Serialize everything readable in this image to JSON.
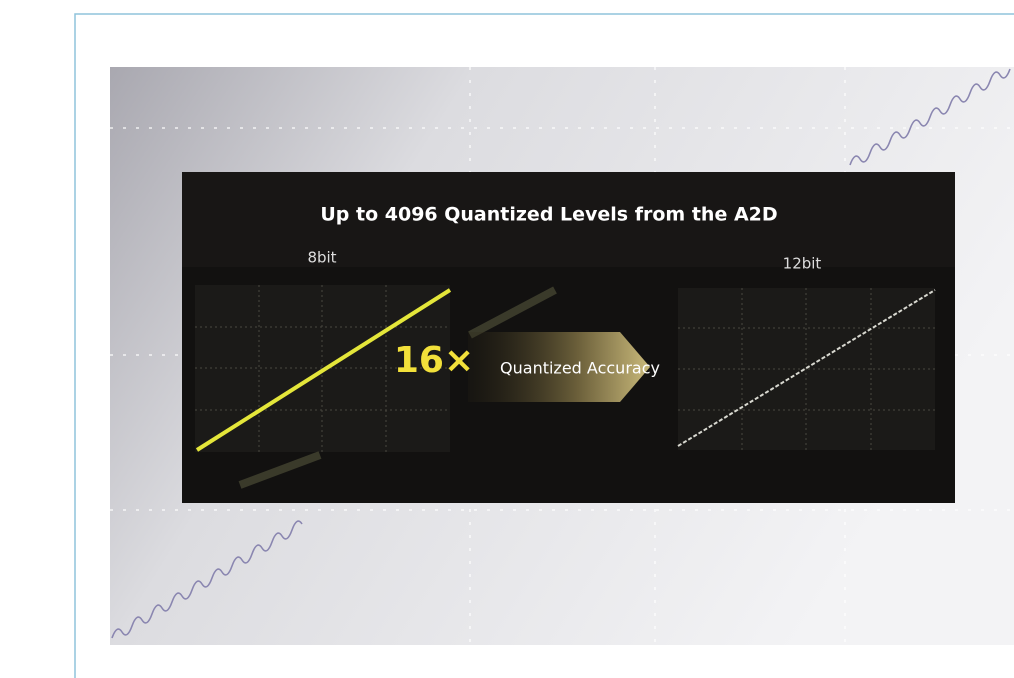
{
  "banner": {
    "title": "Up to 4096 Quantized Levels from the A2D",
    "left_label": "8bit",
    "right_label": "12bit",
    "factor": "16×",
    "factor_caption": "Quantized Accuracy"
  }
}
